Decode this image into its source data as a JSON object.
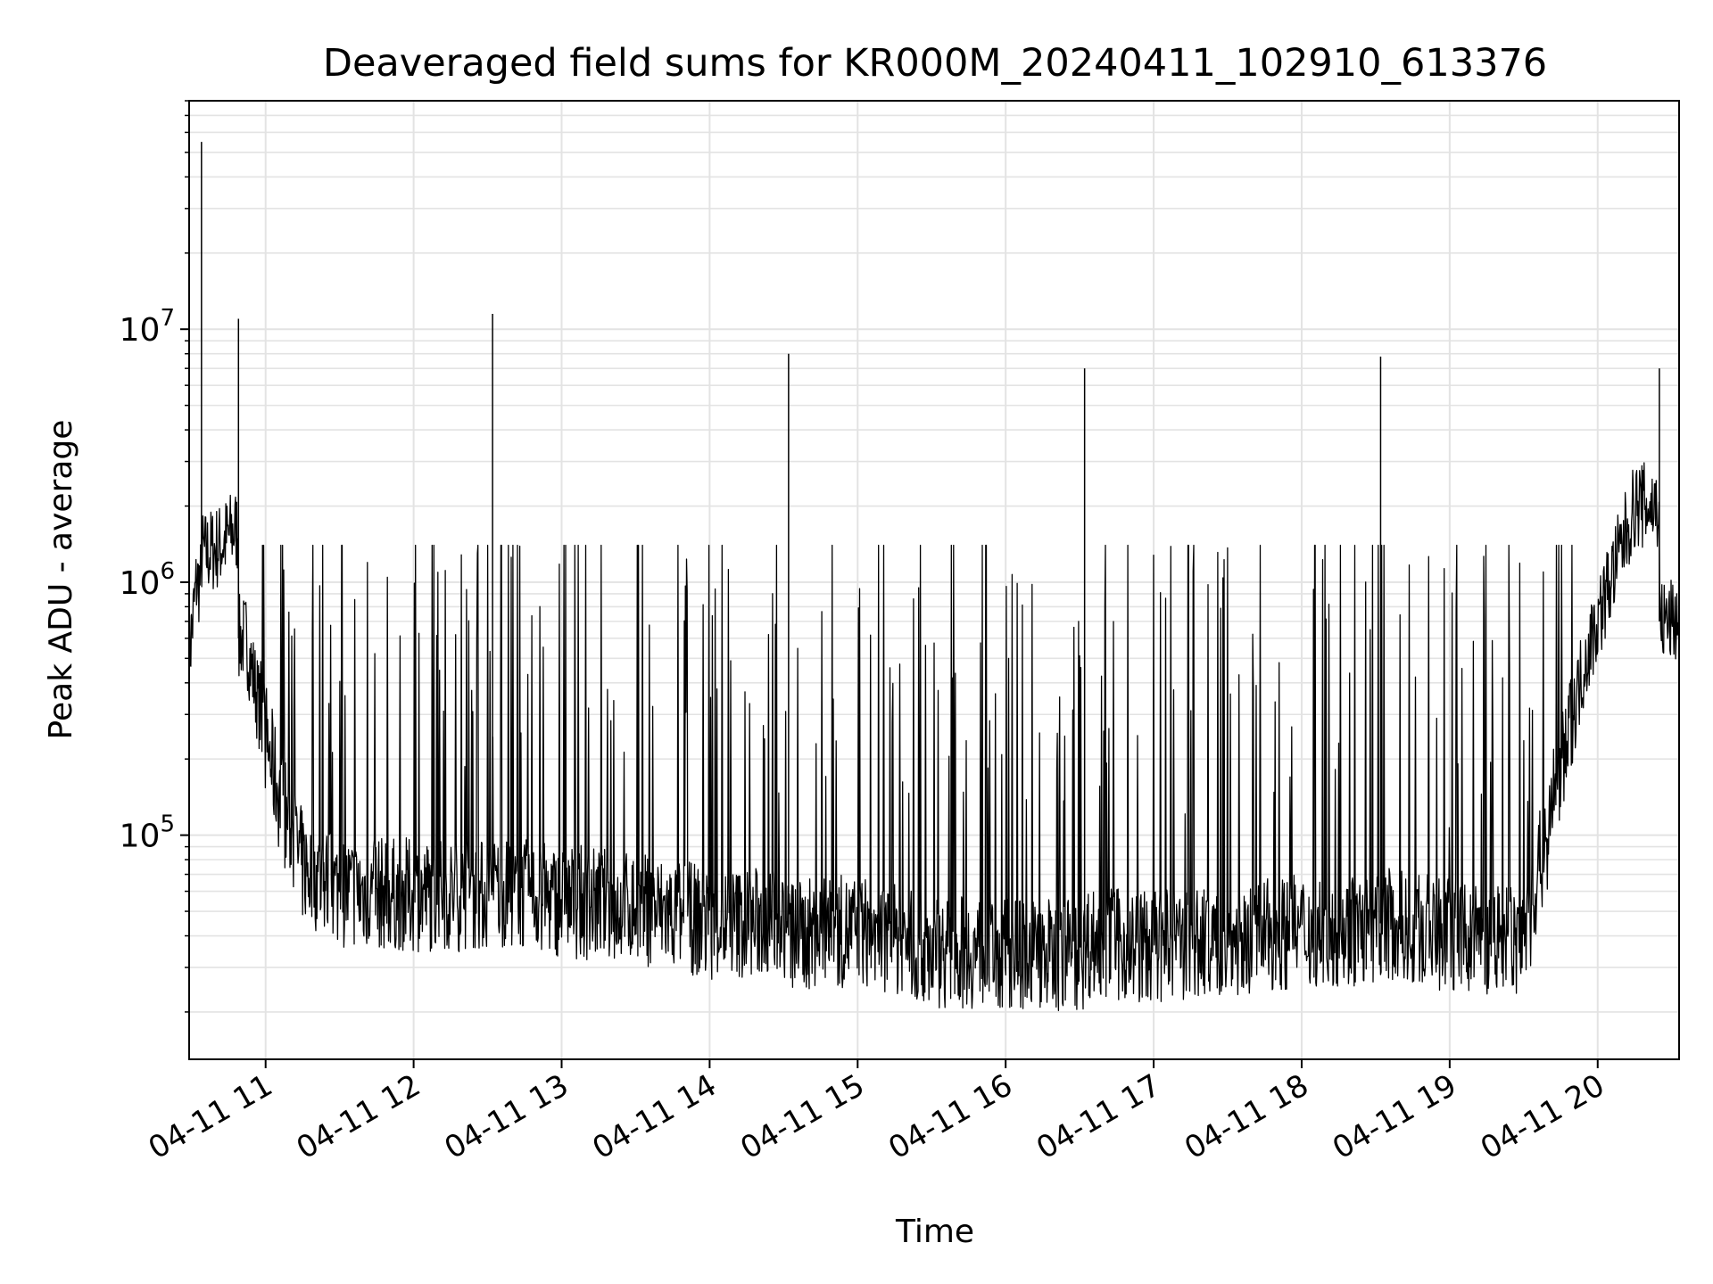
{
  "chart_data": {
    "type": "line",
    "title": "Deaveraged field sums for KR000M_20240411_102910_613376",
    "xlabel": "Time",
    "ylabel": "Peak ADU - average",
    "y_scale": "log",
    "x_range": [
      "2024-04-11 10:29",
      "2024-04-11 20:33"
    ],
    "ylim": [
      13000,
      80000000
    ],
    "grid": "major and minor, light gray",
    "line_color": "#000000",
    "x_ticks": [
      {
        "time": "2024-04-11 11:00",
        "label": "04-11 11"
      },
      {
        "time": "2024-04-11 12:00",
        "label": "04-11 12"
      },
      {
        "time": "2024-04-11 13:00",
        "label": "04-11 13"
      },
      {
        "time": "2024-04-11 14:00",
        "label": "04-11 14"
      },
      {
        "time": "2024-04-11 15:00",
        "label": "04-11 15"
      },
      {
        "time": "2024-04-11 16:00",
        "label": "04-11 16"
      },
      {
        "time": "2024-04-11 17:00",
        "label": "04-11 17"
      },
      {
        "time": "2024-04-11 18:00",
        "label": "04-11 18"
      },
      {
        "time": "2024-04-11 19:00",
        "label": "04-11 19"
      },
      {
        "time": "2024-04-11 20:00",
        "label": "04-11 20"
      }
    ],
    "y_ticks": [
      {
        "value": 100000,
        "base": "10",
        "exp": "5"
      },
      {
        "value": 1000000,
        "base": "10",
        "exp": "6"
      },
      {
        "value": 10000000,
        "base": "10",
        "exp": "7"
      }
    ],
    "series": [
      {
        "points": [
          [
            "2024-04-11 10:29",
            500000
          ],
          [
            "2024-04-11 10:32",
            1000000
          ],
          [
            "2024-04-11 10:34",
            55000000
          ],
          [
            "2024-04-11 10:36",
            1300000
          ],
          [
            "2024-04-11 10:42",
            1400000
          ],
          [
            "2024-04-11 10:47",
            1600000
          ],
          [
            "2024-04-11 10:49",
            11000000
          ],
          [
            "2024-04-11 10:52",
            600000
          ],
          [
            "2024-04-11 10:58",
            300000
          ],
          [
            "2024-04-11 11:05",
            150000
          ],
          [
            "2024-04-11 11:15",
            75000
          ],
          [
            "2024-04-11 11:30",
            60000
          ],
          [
            "2024-04-11 12:00",
            58000
          ],
          [
            "2024-04-11 12:32",
            11500000
          ],
          [
            "2024-04-11 12:33",
            60000
          ],
          [
            "2024-04-11 13:00",
            55000
          ],
          [
            "2024-04-11 13:30",
            52000
          ],
          [
            "2024-04-11 14:00",
            45000
          ],
          [
            "2024-04-11 14:32",
            8000000
          ],
          [
            "2024-04-11 14:33",
            40000
          ],
          [
            "2024-04-11 15:00",
            42000
          ],
          [
            "2024-04-11 15:30",
            35000
          ],
          [
            "2024-04-11 16:00",
            34000
          ],
          [
            "2024-04-11 16:32",
            7000000
          ],
          [
            "2024-04-11 16:33",
            38000
          ],
          [
            "2024-04-11 17:00",
            36000
          ],
          [
            "2024-04-11 17:30",
            38000
          ],
          [
            "2024-04-11 18:00",
            42000
          ],
          [
            "2024-04-11 18:32",
            7800000
          ],
          [
            "2024-04-11 18:33",
            45000
          ],
          [
            "2024-04-11 19:00",
            40000
          ],
          [
            "2024-04-11 19:30",
            38000
          ],
          [
            "2024-04-11 19:55",
            500000
          ],
          [
            "2024-04-11 20:05",
            1000000
          ],
          [
            "2024-04-11 20:15",
            2000000
          ],
          [
            "2024-04-11 20:25",
            7000000
          ],
          [
            "2024-04-11 20:33",
            700000
          ]
        ]
      }
    ]
  }
}
